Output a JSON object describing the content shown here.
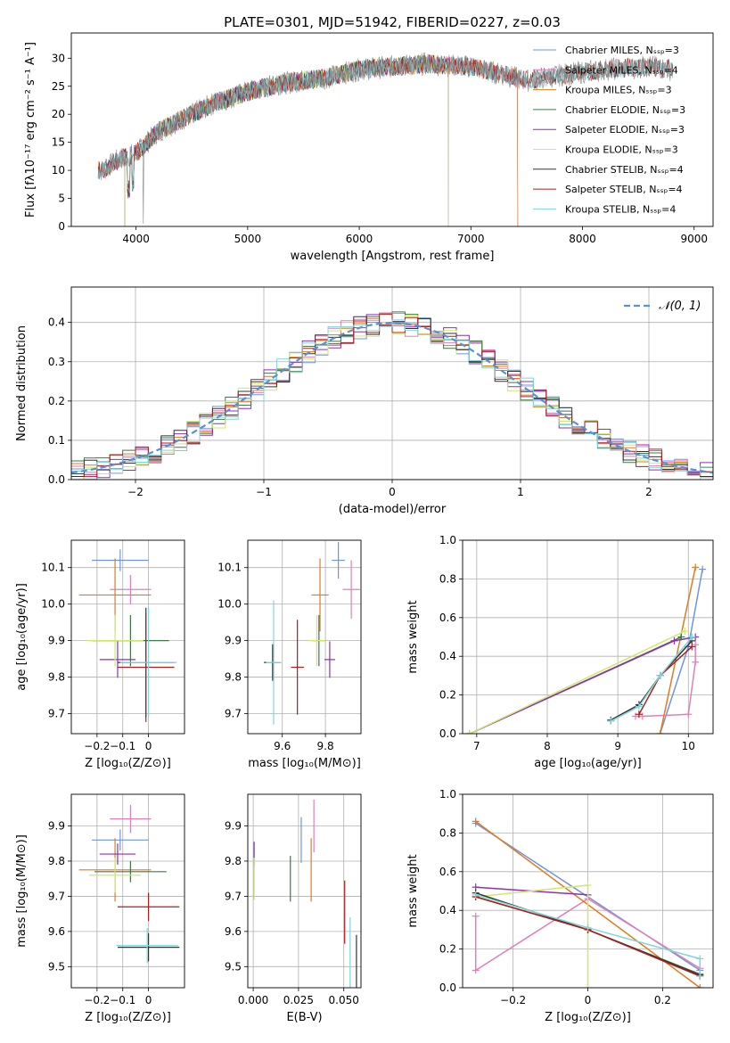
{
  "figure_title": "PLATE=0301, MJD=51942, FIBERID=0227, z=0.03",
  "colors": {
    "Chabrier MILES": "#6f94e2",
    "Salpeter MILES": "#e37fb8",
    "Kroupa MILES": "#e07b1e",
    "Chabrier ELODIE": "#3b7a46",
    "Salpeter ELODIE": "#8e2fb8",
    "Kroupa ELODIE": "#cfe86a",
    "Chabrier STELIB": "#333333",
    "Salpeter STELIB": "#b01c1c",
    "Kroupa STELIB": "#7fd6dc"
  },
  "chart_data": [
    {
      "id": "spectrum",
      "type": "line",
      "xlabel": "wavelength [Angstrom, rest frame]",
      "ylabel": "Flux [fλ10⁻¹⁷ erg cm⁻² s⁻¹ A⁻¹]",
      "xlim": [
        3420,
        9170
      ],
      "ylim": [
        0,
        34.5
      ],
      "xticks": [
        4000,
        5000,
        6000,
        7000,
        8000,
        9000
      ],
      "yticks": [
        0,
        5,
        10,
        15,
        20,
        25,
        30
      ],
      "grid": false,
      "legend_position": "top-right",
      "legend": [
        {
          "model": "Chabrier MILES",
          "label": "Chabrier MILES, Nₛₛₚ=3"
        },
        {
          "model": "Salpeter MILES",
          "label": "Salpeter MILES, Nₛₛₚ=4"
        },
        {
          "model": "Kroupa MILES",
          "label": "Kroupa MILES, Nₛₛₚ=3"
        },
        {
          "model": "Chabrier ELODIE",
          "label": "Chabrier ELODIE, Nₛₛₚ=3"
        },
        {
          "model": "Salpeter ELODIE",
          "label": "Salpeter ELODIE, Nₛₛₚ=3"
        },
        {
          "model": "Kroupa ELODIE",
          "label": "Kroupa ELODIE, Nₛₛₚ=3"
        },
        {
          "model": "Chabrier STELIB",
          "label": "Chabrier STELIB, Nₛₛₚ=4"
        },
        {
          "model": "Salpeter STELIB",
          "label": "Salpeter STELIB, Nₛₛₚ=4"
        },
        {
          "model": "Kroupa STELIB",
          "label": "Kroupa STELIB, Nₛₛₚ=4"
        }
      ],
      "continuum": [
        [
          3700,
          10
        ],
        [
          3850,
          12
        ],
        [
          4000,
          13
        ],
        [
          4200,
          17
        ],
        [
          4400,
          19
        ],
        [
          4700,
          22
        ],
        [
          5000,
          24
        ],
        [
          5300,
          25.5
        ],
        [
          5700,
          26.5
        ],
        [
          6000,
          28
        ],
        [
          6300,
          28.5
        ],
        [
          6600,
          29
        ],
        [
          7000,
          28.5
        ],
        [
          7300,
          27
        ],
        [
          7500,
          26
        ],
        [
          7800,
          27
        ],
        [
          8200,
          28
        ],
        [
          8600,
          28.5
        ],
        [
          8800,
          28
        ]
      ],
      "data_range": [
        3660,
        8810
      ],
      "model_ranges": [
        {
          "model": "Chabrier MILES",
          "range": [
            3660,
            7420
          ]
        },
        {
          "model": "Salpeter MILES",
          "range": [
            3660,
            7420
          ]
        },
        {
          "model": "Kroupa MILES",
          "range": [
            3660,
            7420
          ]
        },
        {
          "model": "Chabrier ELODIE",
          "range": [
            3900,
            6800
          ]
        },
        {
          "model": "Salpeter ELODIE",
          "range": [
            3900,
            6800
          ]
        },
        {
          "model": "Kroupa ELODIE",
          "range": [
            3900,
            6800
          ]
        },
        {
          "model": "Chabrier STELIB",
          "range": [
            3660,
            8810
          ]
        },
        {
          "model": "Salpeter STELIB",
          "range": [
            3660,
            8810
          ]
        },
        {
          "model": "Kroupa STELIB",
          "range": [
            3660,
            8810
          ]
        }
      ]
    },
    {
      "id": "residuals",
      "type": "bar",
      "xlabel": "(data-model)/error",
      "ylabel": "Normed distribution",
      "xlim": [
        -2.5,
        2.5
      ],
      "ylim": [
        0,
        0.49
      ],
      "xticks": [
        -2,
        -1,
        0,
        1,
        2
      ],
      "yticks": [
        0.0,
        0.1,
        0.2,
        0.3,
        0.4
      ],
      "grid": true,
      "legend_position": "top-right",
      "reference": {
        "label": "𝒩(0, 1)",
        "mean": 0,
        "sigma": 1,
        "color": "#5b8fd6"
      },
      "bin_width": 0.1
    },
    {
      "id": "age-vs-Z",
      "type": "scatter",
      "xlabel": "Z [log₁₀(Z/Z⊙)]",
      "ylabel": "age  [log₁₀(age/yr)]",
      "xlim": [
        -0.3,
        0.14
      ],
      "ylim": [
        9.645,
        10.175
      ],
      "xticks": [
        -0.2,
        -0.1,
        0.0
      ],
      "yticks": [
        9.7,
        9.8,
        9.9,
        10.0,
        10.1
      ],
      "grid": true,
      "points": [
        {
          "model": "Chabrier MILES",
          "x": -0.11,
          "y": 10.12,
          "xerr": 0.11,
          "yerr": 0.03
        },
        {
          "model": "Salpeter MILES",
          "x": -0.07,
          "y": 10.04,
          "xerr": 0.08,
          "yerr": 0.04
        },
        {
          "model": "Kroupa MILES",
          "x": -0.13,
          "y": 10.025,
          "xerr": 0.14,
          "yerr": 0.1
        },
        {
          "model": "Chabrier ELODIE",
          "x": -0.07,
          "y": 9.9,
          "xerr": 0.15,
          "yerr": 0.07
        },
        {
          "model": "Salpeter ELODIE",
          "x": -0.12,
          "y": 9.848,
          "xerr": 0.07,
          "yerr": 0.05
        },
        {
          "model": "Kroupa ELODIE",
          "x": -0.13,
          "y": 9.9,
          "xerr": 0.11,
          "yerr": 0.07
        },
        {
          "model": "Chabrier STELIB",
          "x": -0.01,
          "y": 9.84,
          "xerr": 0.11,
          "yerr": 0.15
        },
        {
          "model": "Salpeter STELIB",
          "x": -0.01,
          "y": 9.827,
          "xerr": 0.11,
          "yerr": 0.15
        },
        {
          "model": "Kroupa STELIB",
          "x": 0.0,
          "y": 9.84,
          "xerr": 0.11,
          "yerr": 0.15
        }
      ]
    },
    {
      "id": "age-vs-mass",
      "type": "scatter",
      "xlabel": "mass [log₁₀(M/M⊙)]",
      "ylabel": "",
      "xlim": [
        9.44,
        9.965
      ],
      "ylim": [
        9.645,
        10.175
      ],
      "xticks": [
        9.6,
        9.8
      ],
      "yticks": [
        9.7,
        9.8,
        9.9,
        10.0,
        10.1
      ],
      "grid": true,
      "points": [
        {
          "model": "Chabrier MILES",
          "x": 9.86,
          "y": 10.12,
          "xerr": 0.03,
          "yerr": 0.05
        },
        {
          "model": "Salpeter MILES",
          "x": 9.92,
          "y": 10.04,
          "xerr": 0.04,
          "yerr": 0.08
        },
        {
          "model": "Kroupa MILES",
          "x": 9.775,
          "y": 10.025,
          "xerr": 0.04,
          "yerr": 0.1
        },
        {
          "model": "Chabrier ELODIE",
          "x": 9.77,
          "y": 9.9,
          "xerr": 0.03,
          "yerr": 0.07
        },
        {
          "model": "Salpeter ELODIE",
          "x": 9.82,
          "y": 9.848,
          "xerr": 0.025,
          "yerr": 0.05
        },
        {
          "model": "Kroupa ELODIE",
          "x": 9.76,
          "y": 9.9,
          "xerr": 0.04,
          "yerr": 0.07
        },
        {
          "model": "Chabrier STELIB",
          "x": 9.555,
          "y": 9.84,
          "xerr": 0.04,
          "yerr": 0.05
        },
        {
          "model": "Salpeter STELIB",
          "x": 9.67,
          "y": 9.827,
          "xerr": 0.03,
          "yerr": 0.13
        },
        {
          "model": "Kroupa STELIB",
          "x": 9.56,
          "y": 9.84,
          "xerr": 0.035,
          "yerr": 0.17
        }
      ]
    },
    {
      "id": "weight-vs-age",
      "type": "line",
      "xlabel": "age  [log₁₀(age/yr)]",
      "ylabel": "mass weight",
      "xlim": [
        6.8,
        10.35
      ],
      "ylim": [
        0,
        1.0
      ],
      "xticks": [
        7,
        8,
        9,
        10
      ],
      "yticks": [
        0.0,
        0.2,
        0.4,
        0.6,
        0.8,
        1.0
      ],
      "grid": true,
      "series": [
        {
          "model": "Chabrier MILES",
          "points": [
            [
              9.6,
              0.0
            ],
            [
              10.0,
              0.45
            ],
            [
              10.2,
              0.85
            ]
          ]
        },
        {
          "model": "Salpeter MILES",
          "points": [
            [
              9.25,
              0.09
            ],
            [
              9.35,
              0.09
            ],
            [
              10.0,
              0.1
            ],
            [
              10.1,
              0.37
            ],
            [
              10.1,
              0.46
            ]
          ]
        },
        {
          "model": "Kroupa MILES",
          "points": [
            [
              9.6,
              0.0
            ],
            [
              10.1,
              0.86
            ]
          ]
        },
        {
          "model": "Chabrier ELODIE",
          "points": [
            [
              6.9,
              0.0
            ],
            [
              9.9,
              0.5
            ]
          ]
        },
        {
          "model": "Salpeter ELODIE",
          "points": [
            [
              6.9,
              0.0
            ],
            [
              9.8,
              0.48
            ],
            [
              10.1,
              0.5
            ]
          ]
        },
        {
          "model": "Kroupa ELODIE",
          "points": [
            [
              6.9,
              0.0
            ],
            [
              9.95,
              0.53
            ]
          ]
        },
        {
          "model": "Chabrier STELIB",
          "points": [
            [
              8.9,
              0.07
            ],
            [
              9.3,
              0.15
            ],
            [
              9.6,
              0.3
            ],
            [
              10.05,
              0.48
            ]
          ]
        },
        {
          "model": "Salpeter STELIB",
          "points": [
            [
              9.3,
              0.1
            ],
            [
              9.6,
              0.3
            ],
            [
              10.05,
              0.45
            ]
          ]
        },
        {
          "model": "Kroupa STELIB",
          "points": [
            [
              8.9,
              0.065
            ],
            [
              9.3,
              0.14
            ],
            [
              9.6,
              0.3
            ],
            [
              10.05,
              0.5
            ]
          ]
        }
      ]
    },
    {
      "id": "mass-vs-Z",
      "type": "scatter",
      "xlabel": "Z [log₁₀(Z/Z⊙)]",
      "ylabel": "mass [log₁₀(M/M⊙)]",
      "xlim": [
        -0.3,
        0.14
      ],
      "ylim": [
        9.44,
        9.99
      ],
      "xticks": [
        -0.2,
        -0.1,
        0.0
      ],
      "yticks": [
        9.5,
        9.6,
        9.7,
        9.8,
        9.9
      ],
      "grid": true,
      "points": [
        {
          "model": "Chabrier MILES",
          "x": -0.11,
          "y": 9.86,
          "xerr": 0.11,
          "yerr": 0.03
        },
        {
          "model": "Salpeter MILES",
          "x": -0.07,
          "y": 9.92,
          "xerr": 0.08,
          "yerr": 0.04
        },
        {
          "model": "Kroupa MILES",
          "x": -0.13,
          "y": 9.775,
          "xerr": 0.14,
          "yerr": 0.09
        },
        {
          "model": "Chabrier ELODIE",
          "x": -0.07,
          "y": 9.77,
          "xerr": 0.14,
          "yerr": 0.03
        },
        {
          "model": "Salpeter ELODIE",
          "x": -0.12,
          "y": 9.82,
          "xerr": 0.07,
          "yerr": 0.03
        },
        {
          "model": "Kroupa ELODIE",
          "x": -0.13,
          "y": 9.76,
          "xerr": 0.1,
          "yerr": 0.05
        },
        {
          "model": "Chabrier STELIB",
          "x": 0.0,
          "y": 9.555,
          "xerr": 0.12,
          "yerr": 0.04
        },
        {
          "model": "Salpeter STELIB",
          "x": 0.0,
          "y": 9.67,
          "xerr": 0.12,
          "yerr": 0.04
        },
        {
          "model": "Kroupa STELIB",
          "x": -0.005,
          "y": 9.56,
          "xerr": 0.12,
          "yerr": 0.05
        }
      ]
    },
    {
      "id": "mass-vs-EBV",
      "type": "scatter",
      "xlabel": "E(B-V)",
      "ylabel": "",
      "xlim": [
        -0.003,
        0.0595
      ],
      "ylim": [
        9.44,
        9.99
      ],
      "xticks": [
        0.0,
        0.025,
        0.05
      ],
      "xticklabels": [
        "0.000",
        "0.025",
        "0.050"
      ],
      "yticks": [
        9.5,
        9.6,
        9.7,
        9.8,
        9.9
      ],
      "grid": true,
      "points": [
        {
          "model": "Chabrier MILES",
          "x": 0.0265,
          "y": 9.86,
          "xerr": 0,
          "yerr": 0.065
        },
        {
          "model": "Salpeter MILES",
          "x": 0.0335,
          "y": 9.9,
          "xerr": 0,
          "yerr": 0.075
        },
        {
          "model": "Kroupa MILES",
          "x": 0.032,
          "y": 9.775,
          "xerr": 0,
          "yerr": 0.09
        },
        {
          "model": "Chabrier ELODIE",
          "x": 0.0205,
          "y": 9.75,
          "xerr": 0,
          "yerr": 0.065
        },
        {
          "model": "Salpeter ELODIE",
          "x": 0.0005,
          "y": 9.82,
          "xerr": 0,
          "yerr": 0.035
        },
        {
          "model": "Kroupa ELODIE",
          "x": 0.0005,
          "y": 9.75,
          "xerr": 0,
          "yerr": 0.06
        },
        {
          "model": "Chabrier STELIB",
          "x": 0.057,
          "y": 9.5,
          "xerr": 0,
          "yerr": 0.09
        },
        {
          "model": "Salpeter STELIB",
          "x": 0.0505,
          "y": 9.655,
          "xerr": 0,
          "yerr": 0.09
        },
        {
          "model": "Kroupa STELIB",
          "x": 0.0535,
          "y": 9.54,
          "xerr": 0,
          "yerr": 0.1
        }
      ]
    },
    {
      "id": "weight-vs-Z",
      "type": "line",
      "xlabel": "Z [log₁₀(Z/Z⊙)]",
      "ylabel": "mass weight",
      "xlim": [
        -0.335,
        0.335
      ],
      "ylim": [
        0,
        1.0
      ],
      "xticks": [
        -0.2,
        0.0,
        0.2
      ],
      "yticks": [
        0.0,
        0.2,
        0.4,
        0.6,
        0.8,
        1.0
      ],
      "grid": true,
      "series": [
        {
          "model": "Chabrier MILES",
          "points": [
            [
              -0.3,
              0.85
            ],
            [
              0.3,
              0.09
            ]
          ]
        },
        {
          "model": "Salpeter MILES",
          "points": [
            [
              -0.3,
              0.37
            ],
            [
              -0.3,
              0.09
            ],
            [
              0.0,
              0.46
            ],
            [
              0.3,
              0.1
            ]
          ]
        },
        {
          "model": "Kroupa MILES",
          "points": [
            [
              -0.3,
              0.86
            ],
            [
              0.3,
              0.0
            ]
          ]
        },
        {
          "model": "Chabrier ELODIE",
          "points": [
            [
              -0.3,
              0.47
            ],
            [
              0.0,
              0.3
            ],
            [
              0.3,
              0.07
            ]
          ]
        },
        {
          "model": "Salpeter ELODIE",
          "points": [
            [
              -0.3,
              0.52
            ],
            [
              0.0,
              0.48
            ]
          ]
        },
        {
          "model": "Kroupa ELODIE",
          "points": [
            [
              -0.3,
              0.47
            ],
            [
              0.0,
              0.53
            ],
            [
              0.0,
              0.0
            ]
          ]
        },
        {
          "model": "Chabrier STELIB",
          "points": [
            [
              -0.3,
              0.49
            ],
            [
              0.0,
              0.3
            ],
            [
              0.3,
              0.065
            ]
          ]
        },
        {
          "model": "Salpeter STELIB",
          "points": [
            [
              -0.3,
              0.47
            ],
            [
              0.0,
              0.3
            ],
            [
              0.3,
              0.06
            ]
          ]
        },
        {
          "model": "Kroupa STELIB",
          "points": [
            [
              -0.3,
              0.48
            ],
            [
              0.0,
              0.31
            ],
            [
              0.3,
              0.15
            ],
            [
              0.3,
              0.06
            ]
          ]
        }
      ]
    }
  ]
}
